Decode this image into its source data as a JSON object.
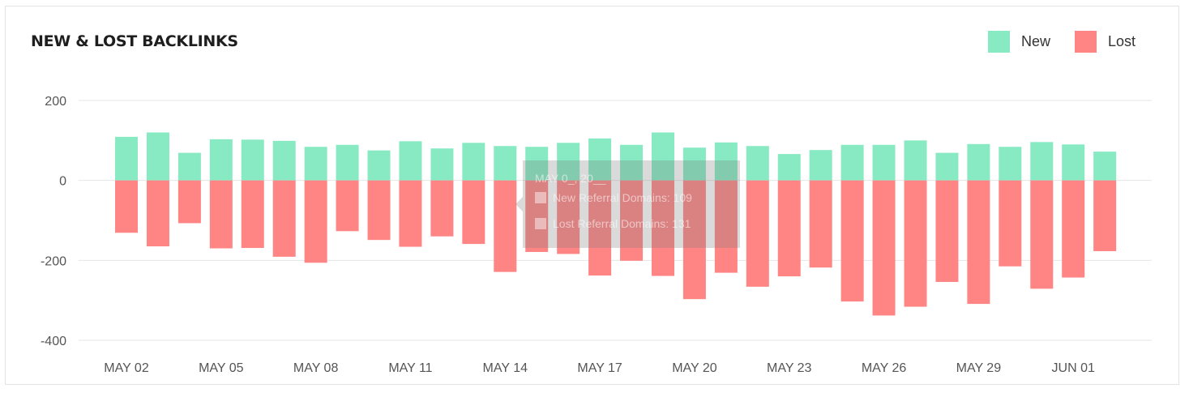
{
  "header": {
    "title": "NEW & LOST BACKLINKS"
  },
  "legend": [
    {
      "label": "New",
      "color": "#87eac3"
    },
    {
      "label": "Lost",
      "color": "#ff8484"
    }
  ],
  "chart_data": {
    "type": "bar",
    "title": "NEW & LOST BACKLINKS",
    "ylim": [
      -400,
      200
    ],
    "yticks": [
      200,
      0,
      -200,
      -400
    ],
    "x_tick_labels": [
      "MAY 02",
      "MAY 05",
      "MAY 08",
      "MAY 11",
      "MAY 14",
      "MAY 17",
      "MAY 20",
      "MAY 23",
      "MAY 26",
      "MAY 29",
      "JUN 01"
    ],
    "x_tick_every": 3,
    "grid": true,
    "legend_position": "top-right",
    "series": [
      {
        "name": "New",
        "color": "#87eac3",
        "values": [
          109,
          120,
          69,
          103,
          102,
          99,
          84,
          89,
          75,
          98,
          80,
          94,
          86,
          84,
          94,
          105,
          89,
          120,
          82,
          95,
          86,
          66,
          76,
          89,
          89,
          100,
          69,
          91,
          84,
          96,
          90,
          72
        ]
      },
      {
        "name": "Lost",
        "color": "#ff8484",
        "values": [
          -131,
          -165,
          -107,
          -170,
          -169,
          -191,
          -206,
          -127,
          -149,
          -166,
          -140,
          -159,
          -229,
          -179,
          -184,
          -238,
          -201,
          -239,
          -297,
          -231,
          -266,
          -240,
          -218,
          -303,
          -338,
          -316,
          -254,
          -309,
          -215,
          -271,
          -243,
          -177
        ]
      }
    ],
    "tooltip": {
      "title": "MAY 0_, 20__",
      "lines": [
        "New Referral Domains:  109",
        "Lost Referral Domains:  131"
      ]
    }
  }
}
